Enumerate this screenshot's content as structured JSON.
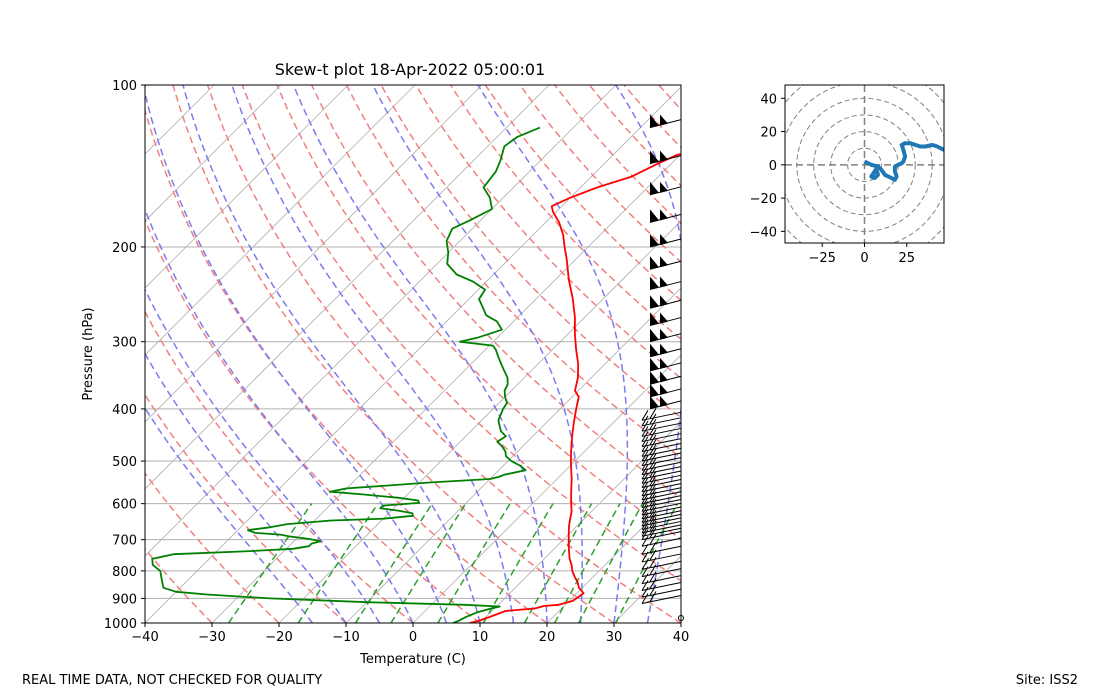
{
  "chart_data": [
    {
      "type": "line",
      "title": "Skew-t plot 18-Apr-2022 05:00:01",
      "xlabel": "Temperature (C)",
      "ylabel": "Pressure (hPa)",
      "xlim": [
        -40,
        40
      ],
      "ylim": [
        1000,
        100
      ],
      "y_scale": "log",
      "x_ticks": [
        "−40",
        "−30",
        "−20",
        "−10",
        "0",
        "10",
        "20",
        "30",
        "40"
      ],
      "x_tick_values": [
        -40,
        -30,
        -20,
        -10,
        0,
        10,
        20,
        30,
        40
      ],
      "y_ticks": [
        "100",
        "200",
        "300",
        "400",
        "500",
        "600",
        "700",
        "800",
        "900",
        "1000"
      ],
      "y_tick_values": [
        100,
        200,
        300,
        400,
        500,
        600,
        700,
        800,
        900,
        1000
      ],
      "grid": true,
      "background_lines": {
        "isotherms_color": "#b0b0b0",
        "dry_adiabats_color": "#f08080",
        "moist_adiabats_color": "#7b7bef",
        "mixing_ratio_color": "#2ca02c"
      },
      "series": [
        {
          "color": "#ff0000",
          "points": [
            [
              1000,
              8.5
            ],
            [
              990,
              9.5
            ],
            [
              975,
              10.5
            ],
            [
              950,
              12
            ],
            [
              940,
              16
            ],
            [
              930,
              17
            ],
            [
              925,
              19
            ],
            [
              910,
              20.5
            ],
            [
              895,
              20.8
            ],
            [
              880,
              21.0
            ],
            [
              860,
              19.5
            ],
            [
              840,
              18.5
            ],
            [
              820,
              17.2
            ],
            [
              800,
              16
            ],
            [
              780,
              15
            ],
            [
              760,
              13.8
            ],
            [
              740,
              12.8
            ],
            [
              720,
              11.8
            ],
            [
              700,
              10.8
            ],
            [
              680,
              9.8
            ],
            [
              660,
              8.8
            ],
            [
              640,
              7.9
            ],
            [
              620,
              7.0
            ],
            [
              600,
              5.8
            ],
            [
              580,
              4.6
            ],
            [
              560,
              3.4
            ],
            [
              540,
              2.2
            ],
            [
              520,
              0.8
            ],
            [
              500,
              -0.6
            ],
            [
              480,
              -2.0
            ],
            [
              460,
              -3.4
            ],
            [
              440,
              -4.8
            ],
            [
              420,
              -6.2
            ],
            [
              400,
              -7.6
            ],
            [
              390,
              -8.3
            ],
            [
              380,
              -9.0
            ],
            [
              370,
              -10.5
            ],
            [
              350,
              -12.0
            ],
            [
              330,
              -14.0
            ],
            [
              310,
              -16.5
            ],
            [
              290,
              -19.0
            ],
            [
              270,
              -21.5
            ],
            [
              250,
              -24.5
            ],
            [
              230,
              -28.0
            ],
            [
              210,
              -31.5
            ],
            [
              200,
              -33.5
            ],
            [
              190,
              -35.5
            ],
            [
              180,
              -38.0
            ],
            [
              172,
              -40.5
            ],
            [
              168,
              -41.5
            ],
            [
              162,
              -40.0
            ],
            [
              155,
              -37.5
            ],
            [
              148,
              -34.0
            ],
            [
              140,
              -32.0
            ],
            [
              135,
              -30.5
            ],
            [
              130,
              -27.0
            ],
            [
              125,
              -24.0
            ],
            [
              122,
              -21.0
            ],
            [
              120,
              -19.0
            ]
          ]
        },
        {
          "color": "#008000",
          "points": [
            [
              1000,
              6.0
            ],
            [
              990,
              6.5
            ],
            [
              975,
              7.0
            ],
            [
              955,
              8.0
            ],
            [
              940,
              9.5
            ],
            [
              932,
              10.5
            ],
            [
              925,
              5.0
            ],
            [
              915,
              -10.0
            ],
            [
              900,
              -25.0
            ],
            [
              885,
              -35.0
            ],
            [
              875,
              -40.0
            ],
            [
              860,
              -42.5
            ],
            [
              840,
              -43.5
            ],
            [
              820,
              -44.5
            ],
            [
              800,
              -45.5
            ],
            [
              780,
              -47.5
            ],
            [
              760,
              -48.5
            ],
            [
              745,
              -46.0
            ],
            [
              735,
              -35.0
            ],
            [
              728,
              -29.0
            ],
            [
              720,
              -27.0
            ],
            [
              712,
              -27.0
            ],
            [
              705,
              -26.0
            ],
            [
              698,
              -28.0
            ],
            [
              690,
              -31.5
            ],
            [
              685,
              -33.0
            ],
            [
              680,
              -37.0
            ],
            [
              672,
              -38.5
            ],
            [
              665,
              -36.0
            ],
            [
              655,
              -33.5
            ],
            [
              645,
              -27.5
            ],
            [
              640,
              -20.0
            ],
            [
              632,
              -16.0
            ],
            [
              625,
              -16.5
            ],
            [
              618,
              -19.0
            ],
            [
              612,
              -22.0
            ],
            [
              605,
              -22.0
            ],
            [
              598,
              -17.0
            ],
            [
              592,
              -17.5
            ],
            [
              585,
              -21.0
            ],
            [
              577,
              -26.5
            ],
            [
              570,
              -32.0
            ],
            [
              562,
              -30.0
            ],
            [
              555,
              -24.0
            ],
            [
              548,
              -18.5
            ],
            [
              540,
              -10.0
            ],
            [
              535,
              -9.0
            ],
            [
              530,
              -8.5
            ],
            [
              520,
              -6.0
            ],
            [
              510,
              -7.5
            ],
            [
              500,
              -9.5
            ],
            [
              490,
              -11.0
            ],
            [
              480,
              -11.8
            ],
            [
              470,
              -13.0
            ],
            [
              460,
              -14.5
            ],
            [
              450,
              -14.0
            ],
            [
              440,
              -15.5
            ],
            [
              430,
              -16.5
            ],
            [
              420,
              -17.5
            ],
            [
              410,
              -18.0
            ],
            [
              400,
              -18.5
            ],
            [
              390,
              -18.8
            ],
            [
              380,
              -20.0
            ],
            [
              370,
              -21.0
            ],
            [
              360,
              -21.5
            ],
            [
              350,
              -22.5
            ],
            [
              340,
              -24.0
            ],
            [
              330,
              -25.5
            ],
            [
              320,
              -27.0
            ],
            [
              310,
              -28.5
            ],
            [
              305,
              -29.5
            ],
            [
              300,
              -35.0
            ],
            [
              295,
              -33.0
            ],
            [
              285,
              -30.5
            ],
            [
              275,
              -32.5
            ],
            [
              268,
              -35.0
            ],
            [
              260,
              -36.5
            ],
            [
              250,
              -38.5
            ],
            [
              240,
              -39.0
            ],
            [
              232,
              -42.0
            ],
            [
              225,
              -45.5
            ],
            [
              215,
              -48.5
            ],
            [
              205,
              -50.0
            ],
            [
              195,
              -52.0
            ],
            [
              185,
              -53.0
            ],
            [
              178,
              -51.5
            ],
            [
              170,
              -50.0
            ],
            [
              162,
              -52.0
            ],
            [
              155,
              -54.5
            ],
            [
              145,
              -55.0
            ],
            [
              138,
              -56.0
            ],
            [
              130,
              -57.5
            ],
            [
              125,
              -57.0
            ],
            [
              120,
              -55.0
            ]
          ]
        }
      ]
    },
    {
      "type": "line",
      "title": "",
      "xlim": [
        -47,
        47
      ],
      "ylim": [
        -47,
        48
      ],
      "x_ticks": [
        "−25",
        "0",
        "25"
      ],
      "x_tick_values": [
        -25,
        0,
        25
      ],
      "y_ticks": [
        "40",
        "20",
        "0",
        "−20",
        "−40"
      ],
      "y_tick_values": [
        40,
        20,
        0,
        -20,
        -40
      ],
      "rings": [
        10,
        20,
        30,
        40,
        50,
        60
      ],
      "series": [
        {
          "color": "#1f77b4",
          "points": [
            [
              0,
              2
            ],
            [
              4,
              0
            ],
            [
              8,
              -1
            ],
            [
              10,
              -3
            ],
            [
              12,
              -6
            ],
            [
              16,
              -8
            ],
            [
              18,
              -9
            ],
            [
              19,
              -7
            ],
            [
              18,
              -4
            ],
            [
              18,
              -1
            ],
            [
              20,
              0
            ],
            [
              22,
              1
            ],
            [
              23,
              2
            ],
            [
              24,
              5
            ],
            [
              23,
              9
            ],
            [
              22,
              12
            ],
            [
              24,
              13
            ],
            [
              27,
              13
            ],
            [
              30,
              12
            ],
            [
              33,
              11
            ],
            [
              36,
              11
            ],
            [
              40,
              12
            ],
            [
              43,
              11
            ],
            [
              47,
              9
            ]
          ],
          "tail": [
            [
              8,
              -1
            ],
            [
              6,
              -4
            ],
            [
              4,
              -7
            ],
            [
              6,
              -8
            ],
            [
              8,
              -6
            ],
            [
              7,
              -3
            ]
          ]
        }
      ]
    }
  ],
  "footer": {
    "left": "REAL TIME DATA, NOT CHECKED FOR QUALITY",
    "right": "Site: ISS2"
  }
}
